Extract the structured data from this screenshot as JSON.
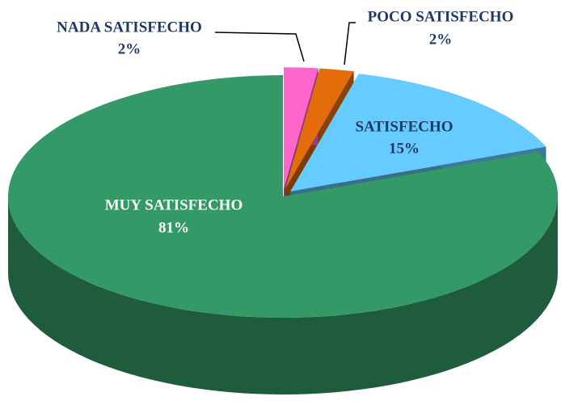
{
  "chart_data": {
    "type": "pie",
    "categories": [
      "NADA SATISFECHO",
      "POCO SATISFECHO",
      "SATISFECHO",
      "MUY SATISFECHO"
    ],
    "values": [
      2,
      2,
      15,
      81
    ],
    "value_labels": [
      "2%",
      "2%",
      "15%",
      "81%"
    ],
    "colors": [
      "#ff66cc",
      "#e46c0a",
      "#66ccff",
      "#339966"
    ],
    "label_colors": [
      "#1f3864",
      "#1f3864",
      "#1f3864",
      "#ffffff"
    ]
  }
}
